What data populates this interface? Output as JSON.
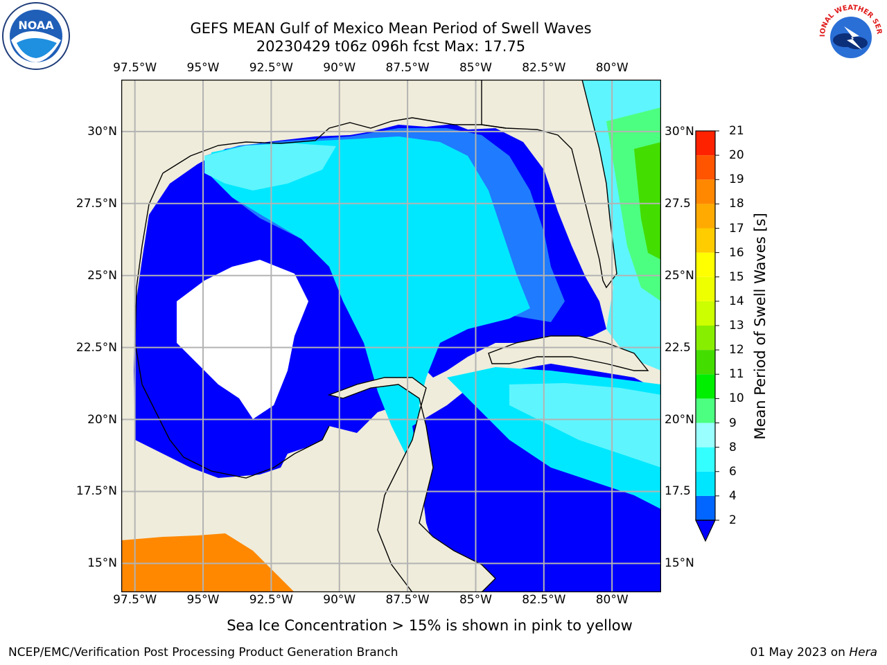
{
  "header": {
    "title_line1": "GEFS MEAN Gulf of Mexico Mean Period of Swell Waves",
    "title_line2": "20230429 t06z 096h fcst   Max: 17.75"
  },
  "logos": {
    "left": {
      "name": "noaa-logo",
      "text": "NOAA"
    },
    "right": {
      "name": "nws-logo",
      "text": "NATIONAL WEATHER SERVICE"
    }
  },
  "map": {
    "lon_ticks": [
      "97.5°W",
      "95°W",
      "92.5°W",
      "90°W",
      "87.5°W",
      "85°W",
      "82.5°W",
      "80°W"
    ],
    "lat_ticks_left": [
      "30°N",
      "27.5°N",
      "25°N",
      "22.5°N",
      "20°N",
      "17.5°N",
      "15°N"
    ],
    "lat_ticks_right": [
      "30°N",
      "27.5",
      "25°N",
      "22.5",
      "20°N",
      "17.5",
      "15°N"
    ],
    "lon_values": [
      -97.5,
      -95,
      -92.5,
      -90,
      -87.5,
      -85,
      -82.5,
      -80
    ],
    "lat_values": [
      30,
      27.5,
      25,
      22.5,
      20,
      17.5,
      15
    ],
    "extent": {
      "lon_min": -98,
      "lon_max": -78.2,
      "lat_min": 14,
      "lat_max": 31.8
    },
    "colors": {
      "land": "#efecdb",
      "no_data": "#ffffff",
      "coast": "#000000",
      "grid": "#b3b3b3"
    }
  },
  "colorbar": {
    "label": "Mean Period of Swell Waves [s]",
    "ticks": [
      "2",
      "4",
      "6",
      "8",
      "9",
      "10",
      "11",
      "12",
      "13",
      "14",
      "15",
      "16",
      "17",
      "18",
      "19",
      "20",
      "21"
    ],
    "levels": [
      2,
      4,
      6,
      8,
      9,
      10,
      11,
      12,
      13,
      14,
      15,
      16,
      17,
      18,
      19,
      20,
      21
    ],
    "colors": [
      "#0066ff",
      "#00e6ff",
      "#33ffff",
      "#99ffff",
      "#4dff80",
      "#00ee00",
      "#44dd00",
      "#88ee00",
      "#ccff00",
      "#eeff00",
      "#ffff00",
      "#ffcc00",
      "#ffaa00",
      "#ff8800",
      "#ff5500",
      "#ff2200"
    ],
    "under_color": "#0000ff"
  },
  "note": "Sea Ice Concentration > 15% is shown in pink to yellow",
  "footer": {
    "left": "NCEP/EMC/Verification Post Processing Product Generation Branch",
    "right_date": "01 May 2023 on ",
    "right_host": "Hera"
  }
}
